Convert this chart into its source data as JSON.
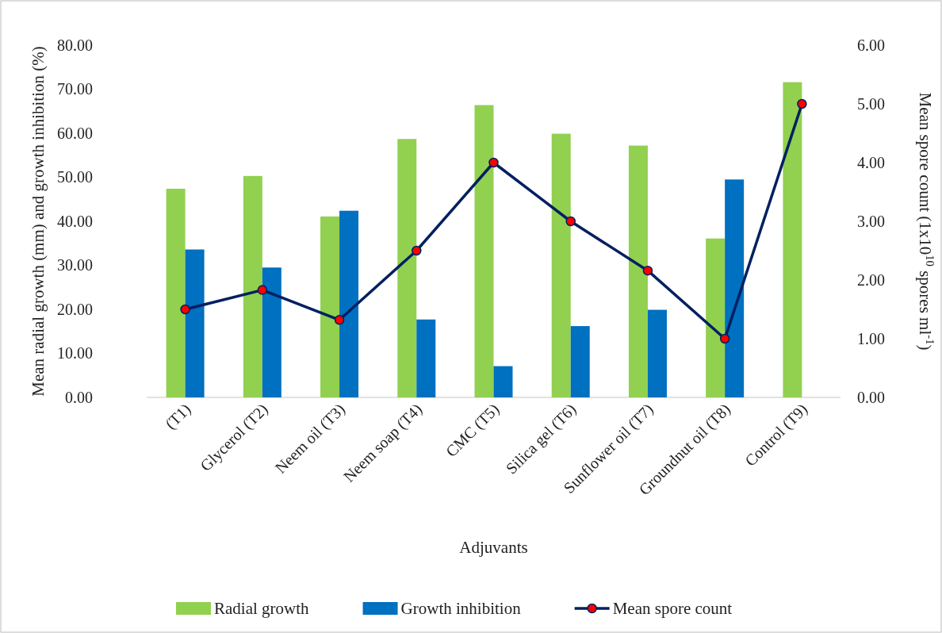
{
  "chart_data": {
    "type": "bar",
    "xlabel": "Adjuvants",
    "ylabel": "Mean radial growth (mm) and growth inhibition (%)",
    "y2label": "Mean spore count (1x10$^{10}$ spores ml$^{-1}$)",
    "categories": [
      "(T1)",
      "Glycerol (T2)",
      "Neem oil (T3)",
      "Neem soap (T4)",
      "CMC (T5)",
      "Silica gel (T6)",
      "Sunflower oil (T7)",
      "Groundnut oil (T8)",
      "Control (T9)"
    ],
    "series": [
      {
        "name": "Radial growth",
        "color": "#92d050",
        "values": [
          47.4,
          50.3,
          41.1,
          58.7,
          66.4,
          59.9,
          57.2,
          36.1,
          71.6
        ]
      },
      {
        "name": "Growth inhibition",
        "color": "#0070c0",
        "values": [
          33.6,
          29.5,
          42.4,
          17.7,
          7.1,
          16.2,
          19.9,
          49.5,
          null
        ]
      },
      {
        "name": "Mean spore count",
        "type": "line",
        "axis": "y2",
        "color": "#002060",
        "marker": "circle",
        "line_style": "solid",
        "values": [
          1.5,
          1.83,
          1.32,
          2.5,
          4.0,
          3.0,
          2.16,
          1.0,
          5.0
        ]
      }
    ],
    "ylim": [
      0,
      80
    ],
    "yticks": [
      {
        "value": 0,
        "label": "0.00"
      },
      {
        "value": 10,
        "label": "10.00"
      },
      {
        "value": 20,
        "label": "20.00"
      },
      {
        "value": 30,
        "label": "30.00"
      },
      {
        "value": 40,
        "label": "40.00"
      },
      {
        "value": 50,
        "label": "50.00"
      },
      {
        "value": 60,
        "label": "60.00"
      },
      {
        "value": 70,
        "label": "70.00"
      },
      {
        "value": 80,
        "label": "80.00"
      }
    ],
    "y2lim": [
      0,
      6
    ],
    "y2ticks": [
      {
        "value": 0,
        "label": "0.00"
      },
      {
        "value": 1,
        "label": "1.00"
      },
      {
        "value": 2,
        "label": "2.00"
      },
      {
        "value": 3,
        "label": "3.00"
      },
      {
        "value": 4,
        "label": "4.00"
      },
      {
        "value": 5,
        "label": "5.00"
      },
      {
        "value": 6,
        "label": "6.00"
      }
    ],
    "grid": false,
    "legend": "bottom"
  }
}
